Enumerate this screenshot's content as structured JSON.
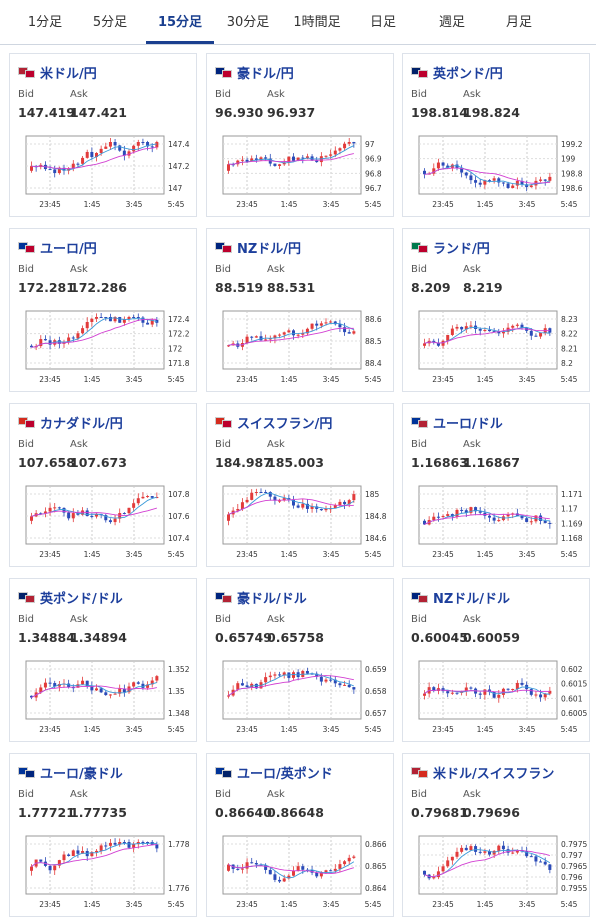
{
  "tabs": [
    "1分足",
    "5分足",
    "15分足",
    "30分足",
    "1時間足",
    "日足",
    "週足",
    "月足"
  ],
  "active_tab": "15分足",
  "labels": {
    "bid": "Bid",
    "ask": "Ask"
  },
  "cards": [
    {
      "pair": "米ドル/円",
      "bid": "147.419",
      "ask": "147.421",
      "flags": [
        "#b22234",
        "#bc002d"
      ],
      "yticks": [
        "147.4",
        "147.2",
        "147"
      ],
      "xticks": [
        "23:45",
        "1:45",
        "3:45",
        "5:45"
      ]
    },
    {
      "pair": "豪ドル/円",
      "bid": "96.930",
      "ask": "96.937",
      "flags": [
        "#00247d",
        "#bc002d"
      ],
      "yticks": [
        "97",
        "96.9",
        "96.8",
        "96.7"
      ],
      "xticks": [
        "23:45",
        "1:45",
        "3:45",
        "5:45"
      ]
    },
    {
      "pair": "英ポンド/円",
      "bid": "198.814",
      "ask": "198.824",
      "flags": [
        "#012169",
        "#bc002d"
      ],
      "yticks": [
        "199.2",
        "199",
        "198.8",
        "198.6"
      ],
      "xticks": [
        "23:45",
        "1:45",
        "3:45",
        "5:45"
      ]
    },
    {
      "pair": "ユーロ/円",
      "bid": "172.281",
      "ask": "172.286",
      "flags": [
        "#003399",
        "#bc002d"
      ],
      "yticks": [
        "172.4",
        "172.2",
        "172",
        "171.8"
      ],
      "xticks": [
        "23:45",
        "1:45",
        "3:45",
        "5:45"
      ]
    },
    {
      "pair": "NZドル/円",
      "bid": "88.519",
      "ask": "88.531",
      "flags": [
        "#00247d",
        "#bc002d"
      ],
      "yticks": [
        "88.6",
        "88.5",
        "88.4"
      ],
      "xticks": [
        "23:45",
        "1:45",
        "3:45",
        "5:45"
      ]
    },
    {
      "pair": "ランド/円",
      "bid": "8.209",
      "ask": "8.219",
      "flags": [
        "#007a4d",
        "#bc002d"
      ],
      "yticks": [
        "8.23",
        "8.22",
        "8.21",
        "8.2"
      ],
      "xticks": [
        "23:45",
        "1:45",
        "3:45",
        "5:45"
      ]
    },
    {
      "pair": "カナダドル/円",
      "bid": "107.658",
      "ask": "107.673",
      "flags": [
        "#d52b1e",
        "#bc002d"
      ],
      "yticks": [
        "107.8",
        "107.6",
        "107.4"
      ],
      "xticks": [
        "23:45",
        "1:45",
        "3:45",
        "5:45"
      ]
    },
    {
      "pair": "スイスフラン/円",
      "bid": "184.987",
      "ask": "185.003",
      "flags": [
        "#d52b1e",
        "#bc002d"
      ],
      "yticks": [
        "185",
        "184.8",
        "184.6"
      ],
      "xticks": [
        "23:45",
        "1:45",
        "3:45",
        "5:45"
      ]
    },
    {
      "pair": "ユーロ/ドル",
      "bid": "1.16863",
      "ask": "1.16867",
      "flags": [
        "#003399",
        "#b22234"
      ],
      "yticks": [
        "1.171",
        "1.17",
        "1.169",
        "1.168"
      ],
      "xticks": [
        "23:45",
        "1:45",
        "3:45",
        "5:45"
      ]
    },
    {
      "pair": "英ポンド/ドル",
      "bid": "1.34884",
      "ask": "1.34894",
      "flags": [
        "#012169",
        "#b22234"
      ],
      "yticks": [
        "1.352",
        "1.35",
        "1.348"
      ],
      "xticks": [
        "23:45",
        "1:45",
        "3:45",
        "5:45"
      ]
    },
    {
      "pair": "豪ドル/ドル",
      "bid": "0.65749",
      "ask": "0.65758",
      "flags": [
        "#00247d",
        "#b22234"
      ],
      "yticks": [
        "0.659",
        "0.658",
        "0.657"
      ],
      "xticks": [
        "23:45",
        "1:45",
        "3:45",
        "5:45"
      ]
    },
    {
      "pair": "NZドル/ドル",
      "bid": "0.60045",
      "ask": "0.60059",
      "flags": [
        "#00247d",
        "#b22234"
      ],
      "yticks": [
        "0.602",
        "0.6015",
        "0.601",
        "0.6005"
      ],
      "xticks": [
        "23:45",
        "1:45",
        "3:45",
        "5:45"
      ]
    },
    {
      "pair": "ユーロ/豪ドル",
      "bid": "1.77721",
      "ask": "1.77735",
      "flags": [
        "#003399",
        "#00247d"
      ],
      "yticks": [
        "1.778",
        "1.776"
      ],
      "xticks": [
        "23:45",
        "1:45",
        "3:45",
        "5:45"
      ]
    },
    {
      "pair": "ユーロ/英ポンド",
      "bid": "0.86640",
      "ask": "0.86648",
      "flags": [
        "#003399",
        "#012169"
      ],
      "yticks": [
        "0.866",
        "0.865",
        "0.864"
      ],
      "xticks": [
        "23:45",
        "1:45",
        "3:45",
        "5:45"
      ]
    },
    {
      "pair": "米ドル/スイスフラン",
      "bid": "0.79681",
      "ask": "0.79696",
      "flags": [
        "#b22234",
        "#d52b1e"
      ],
      "yticks": [
        "0.7975",
        "0.797",
        "0.7965",
        "0.796",
        "0.7955"
      ],
      "xticks": [
        "23:45",
        "1:45",
        "3:45",
        "5:45"
      ]
    }
  ],
  "colors": {
    "up": "#e23b3b",
    "down": "#2b4bb8",
    "ma_short": "#3a9ad9",
    "ma_long": "#d23fd2"
  }
}
